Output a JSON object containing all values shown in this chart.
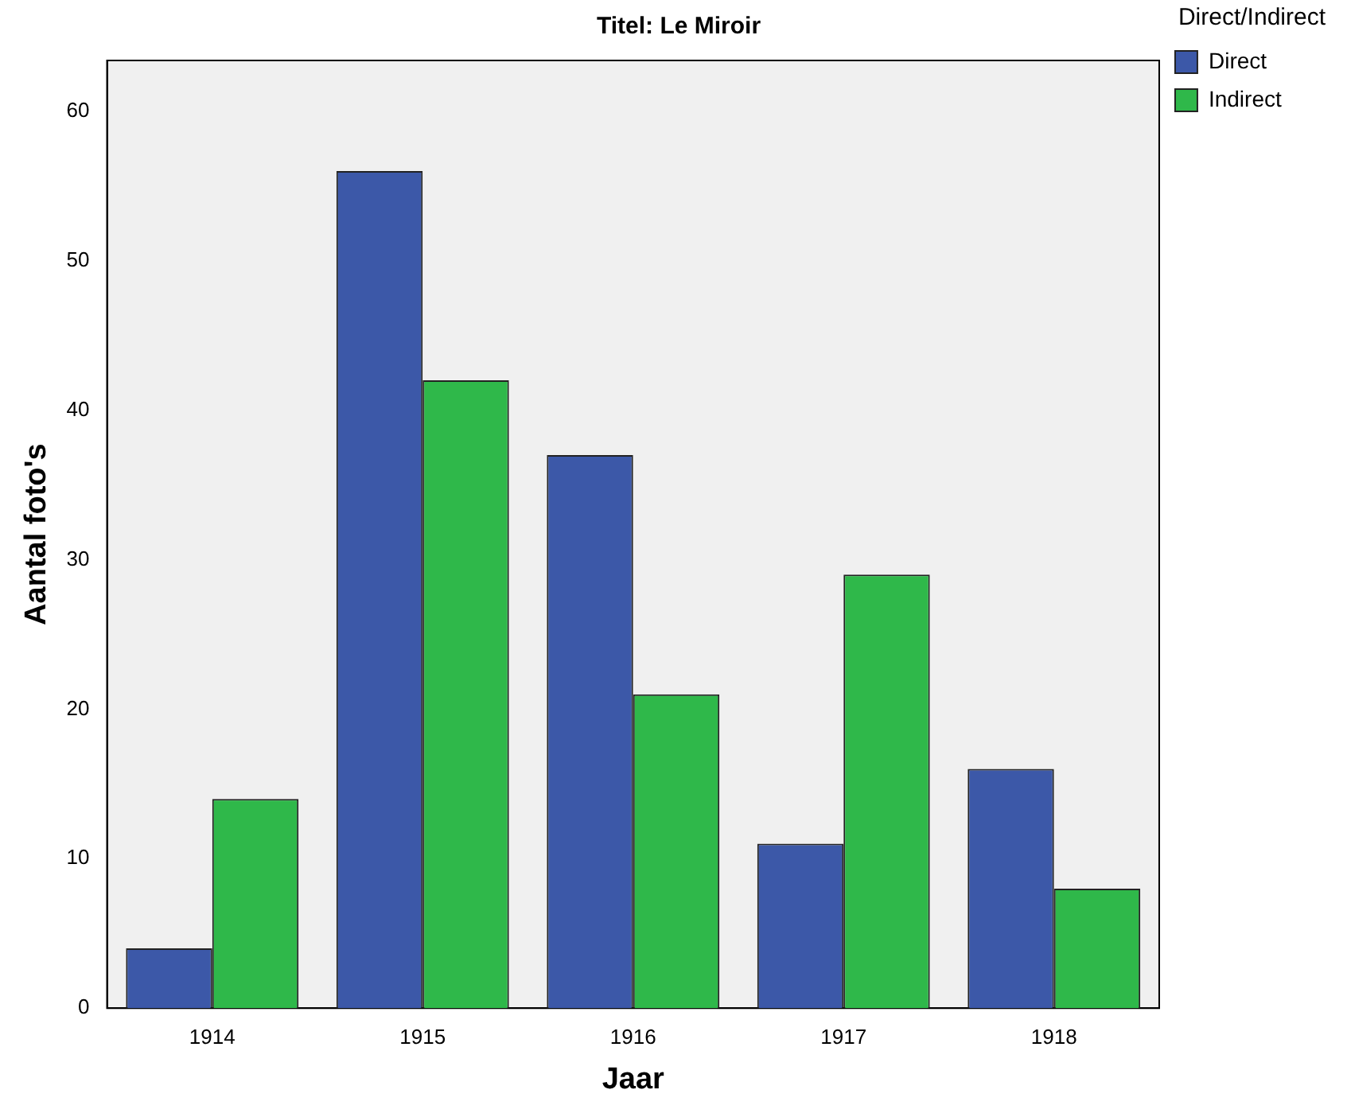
{
  "chart_data": {
    "type": "bar",
    "title": "Titel: Le Miroir",
    "xlabel": "Jaar",
    "ylabel": "Aantal foto's",
    "legend_title": "Direct/Indirect",
    "categories": [
      "1914",
      "1915",
      "1916",
      "1917",
      "1918"
    ],
    "series": [
      {
        "name": "Direct",
        "color": "#3c58a8",
        "values": [
          4,
          56,
          37,
          11,
          16
        ]
      },
      {
        "name": "Indirect",
        "color": "#2fb84a",
        "values": [
          14,
          42,
          21,
          29,
          8
        ]
      }
    ],
    "ylim": [
      0,
      63.4
    ],
    "yticks": [
      0,
      10,
      20,
      30,
      40,
      50,
      60
    ],
    "grid": false,
    "legend": "top right"
  }
}
